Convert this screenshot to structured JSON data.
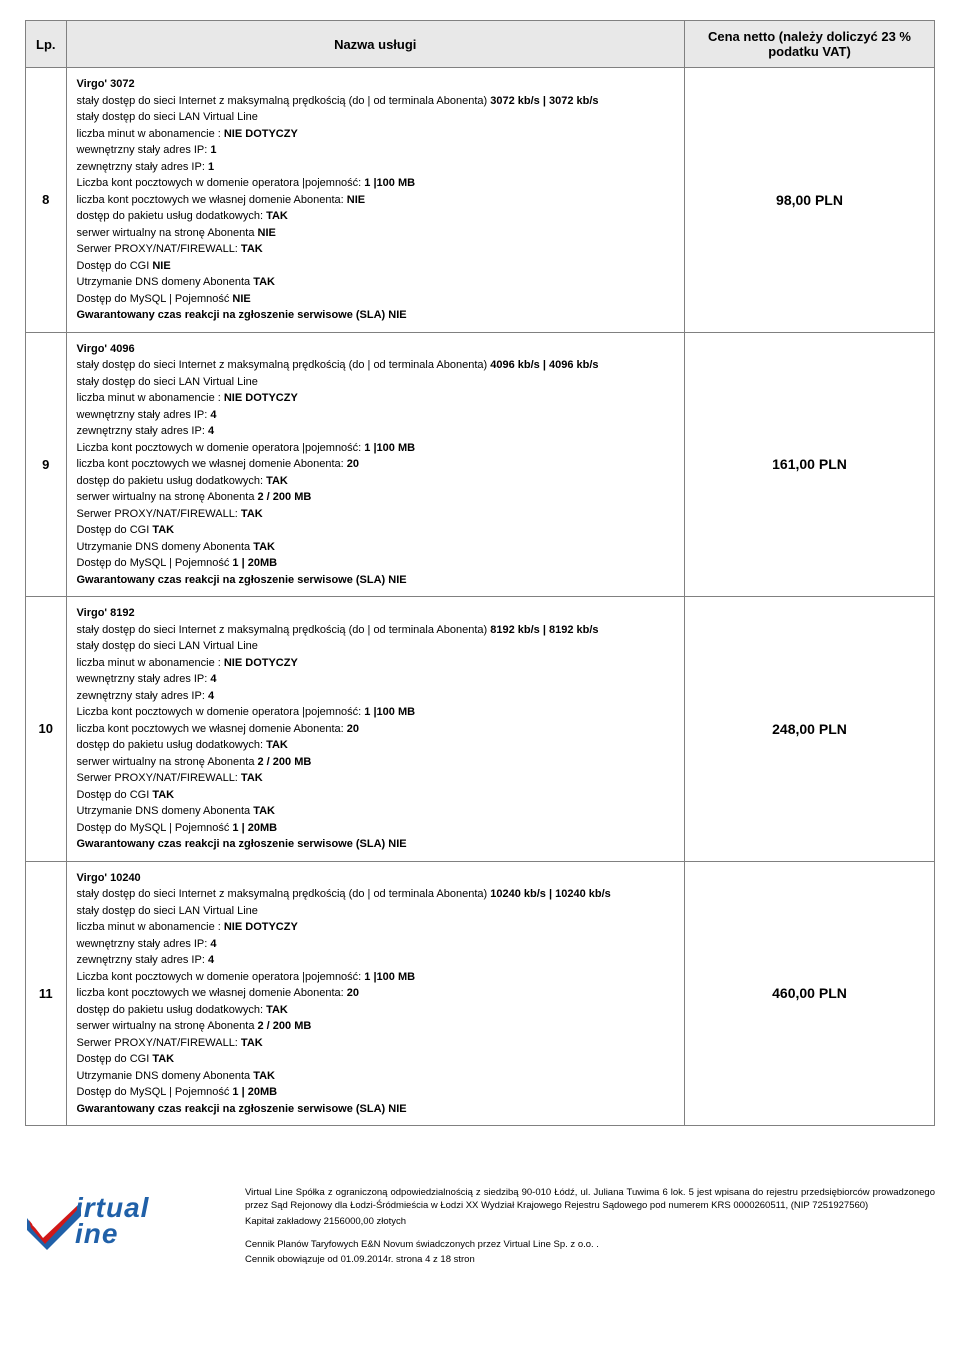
{
  "header": {
    "lp": "Lp.",
    "name": "Nazwa usługi",
    "price": "Cena netto  (należy doliczyć 23 % podatku VAT)"
  },
  "rows": [
    {
      "lp": "8",
      "price": "98,00 PLN",
      "title": "Virgo' 3072",
      "speed": "3072 kb/s | 3072 kb/s",
      "ip_in": "1",
      "ip_out": "1",
      "own_domain": "NIE",
      "vserver": "NIE",
      "vserver_strong": "NIE",
      "cgi": "NIE",
      "mysql": "NIE",
      "mysql_strong": "NIE"
    },
    {
      "lp": "9",
      "price": "161,00 PLN",
      "title": "Virgo' 4096",
      "speed": "4096 kb/s | 4096 kb/s",
      "ip_in": "4",
      "ip_out": "4",
      "own_domain": "20",
      "vserver": "2 / 200 MB",
      "vserver_strong": "2 / 200 MB",
      "cgi": "TAK",
      "mysql": "1 | 20MB",
      "mysql_strong": "1 | 20MB"
    },
    {
      "lp": "10",
      "price": "248,00 PLN",
      "title": "Virgo' 8192",
      "speed": "8192 kb/s | 8192 kb/s",
      "ip_in": "4",
      "ip_out": "4",
      "own_domain": "20",
      "vserver": "2 / 200 MB",
      "vserver_strong": "2 / 200 MB",
      "cgi": "TAK",
      "mysql": "1 | 20MB",
      "mysql_strong": "1 | 20MB"
    },
    {
      "lp": "11",
      "price": "460,00 PLN",
      "title": "Virgo' 10240",
      "speed": "10240 kb/s | 10240 kb/s",
      "ip_in": "4",
      "ip_out": "4",
      "own_domain": "20",
      "vserver": "2 / 200 MB",
      "vserver_strong": "2 / 200 MB",
      "cgi": "TAK",
      "mysql": "1 | 20MB",
      "mysql_strong": "1 | 20MB"
    }
  ],
  "labels": {
    "internet_pre": "stały dostęp do sieci Internet z maksymalną prędkością (do | od terminala Abonenta) ",
    "lan": "stały dostęp do sieci LAN Virtual Line",
    "minutes_pre": "liczba minut w abonamencie : ",
    "minutes_val": "NIE DOTYCZY",
    "ip_in_pre": "wewnętrzny stały adres IP:  ",
    "ip_out_pre": "zewnętrzny stały adres IP:   ",
    "mailboxes_pre": "Liczba kont pocztowych w domenie operatora |pojemność: ",
    "mailboxes_val": "1 |100 MB",
    "own_domain_pre": "liczba kont pocztowych we własnej domenie Abonenta: ",
    "pkg_pre": "dostęp do pakietu usług dodatkowych: ",
    "pkg_val": "TAK",
    "vserver_pre": "serwer wirtualny na stronę Abonenta ",
    "proxy_pre": "Serwer PROXY/NAT/FIREWALL: ",
    "proxy_val": "TAK",
    "cgi_pre": "Dostęp do CGI ",
    "cgi_space": " ",
    "dns_pre": "Utrzymanie DNS domeny Abonenta ",
    "dns_val": "TAK",
    "mysql_pre": "Dostęp do MySQL | Pojemność ",
    "sla": "Gwarantowany czas reakcji na zgłoszenie serwisowe (SLA) NIE"
  },
  "footer": {
    "line1": "Virtual Line Spółka z ograniczoną odpowiedzialnością z siedzibą  90-010 Łódź, ul. Juliana Tuwima 6 lok. 5 jest wpisana do rejestru przedsiębiorców prowadzonego przez Sąd Rejonowy dla Łodzi-Śródmieścia w Łodzi XX Wydział Krajowego Rejestru Sądowego pod numerem KRS 0000260511, (NIP 7251927560)",
    "line2": "Kapitał zakładowy  2156000,00 złotych",
    "line3": "Cennik Planów Taryfowych E&N Novum świadczonych przez Virtual Line Sp. z o.o. .",
    "line4": "Cennik obowiązuje od 01.09.2014r. strona 4 z 18 stron"
  },
  "logo": {
    "text1": "irtual",
    "text2": "ine",
    "color_blue": "#2060a8",
    "color_red": "#d01818",
    "color_white": "#ffffff"
  }
}
